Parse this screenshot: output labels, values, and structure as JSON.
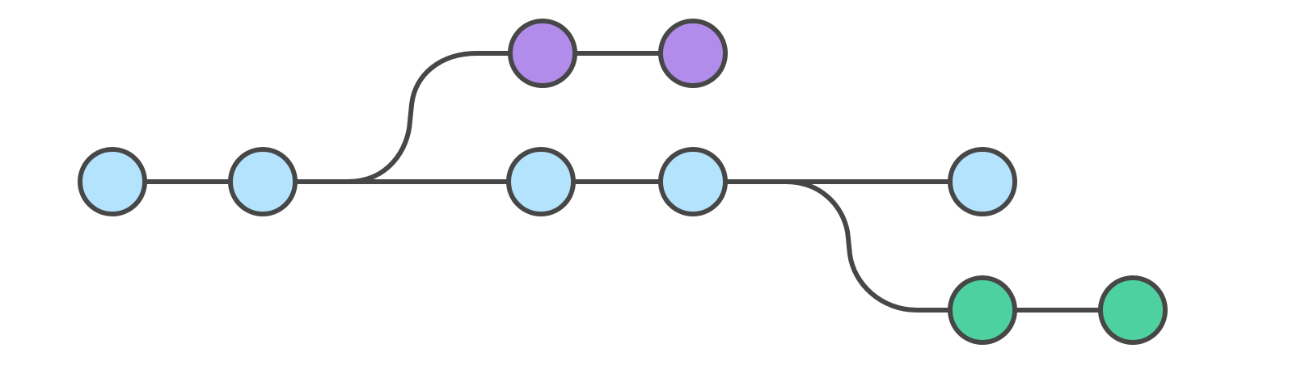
{
  "diagram": {
    "type": "git-branch-graph",
    "colors": {
      "stroke": "#474747",
      "main_branch": "#b3e3fd",
      "feature_branch_top": "#b28ceb",
      "feature_branch_bottom": "#4ed1a0",
      "background": "#ffffff"
    },
    "branches": [
      {
        "id": "main",
        "color_key": "main_branch",
        "commit_count": 5
      },
      {
        "id": "feature-top",
        "color_key": "feature_branch_top",
        "commit_count": 2,
        "forks_after_main_commit": 2
      },
      {
        "id": "feature-bottom",
        "color_key": "feature_branch_bottom",
        "commit_count": 2,
        "forks_after_main_commit": 4
      }
    ]
  }
}
